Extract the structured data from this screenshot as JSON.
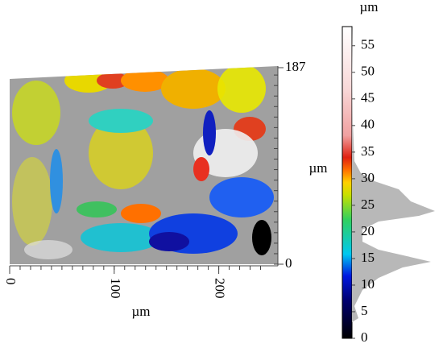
{
  "surface": {
    "x_label": "µm",
    "xlim": [
      0,
      245
    ],
    "xticks": [
      0,
      100,
      200
    ],
    "ylim": [
      0,
      187
    ],
    "yticks": [
      0,
      187
    ]
  },
  "colorbar": {
    "top_label": "µm",
    "side_label": "µm",
    "lim": [
      0,
      58.6
    ],
    "ticks": [
      0,
      5,
      10,
      15,
      20,
      25,
      30,
      35,
      40,
      45,
      50,
      55
    ]
  }
}
